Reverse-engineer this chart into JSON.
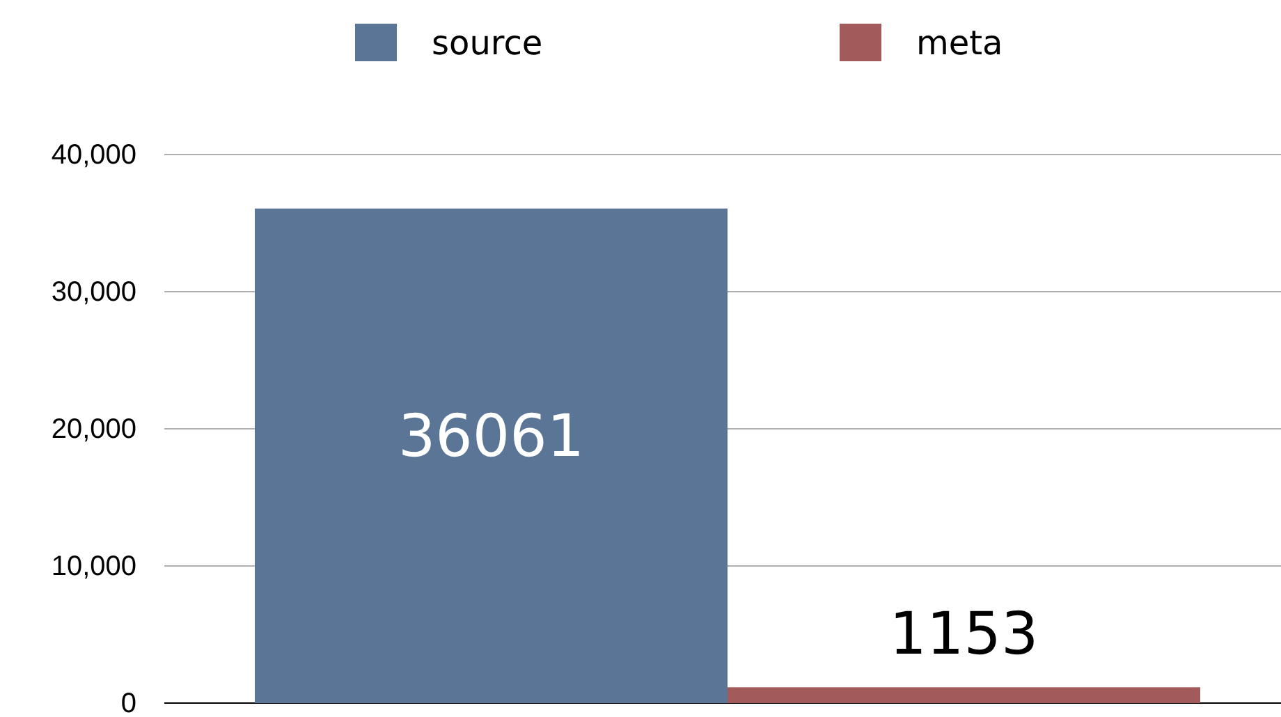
{
  "chart_data": {
    "type": "bar",
    "categories": [
      null
    ],
    "series": [
      {
        "name": "source",
        "color": "#5b7596",
        "values": [
          36061
        ]
      },
      {
        "name": "meta",
        "color": "#a35a5a",
        "values": [
          1153
        ]
      }
    ],
    "ylim": [
      0,
      40000
    ],
    "yticks": [
      {
        "value": 0,
        "label": "0"
      },
      {
        "value": 10000,
        "label": "10,000"
      },
      {
        "value": 20000,
        "label": "20,000"
      },
      {
        "value": 30000,
        "label": "30,000"
      },
      {
        "value": 40000,
        "label": "40,000"
      }
    ],
    "grid": "y",
    "legend": "top",
    "data_labels": true
  }
}
